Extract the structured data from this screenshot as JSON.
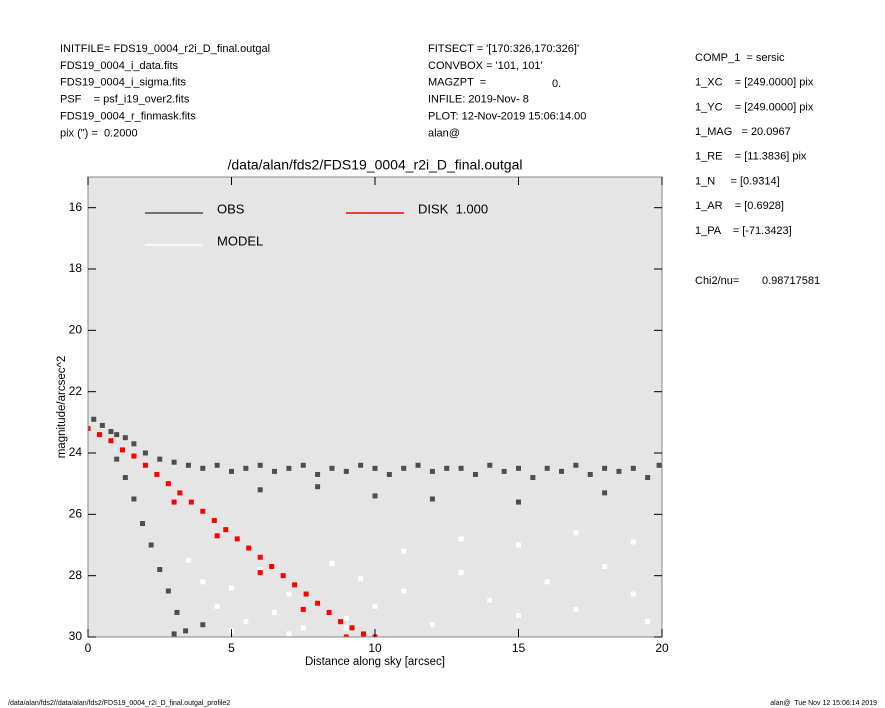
{
  "header": {
    "left": [
      "INITFILE= FDS19_0004_r2i_D_final.outgal",
      "FDS19_0004_i_data.fits",
      "FDS19_0004_i_sigma.fits",
      "PSF    = psf_i19_over2.fits",
      "FDS19_0004_r_finmask.fits",
      "pix (\") =  0.2000"
    ],
    "middle": [
      "FITSECT = '[170:326,170:326]'",
      "CONVBOX = '101, 101'",
      "MAGZPT  =",
      "INFILE: 2019-Nov- 8",
      "PLOT: 12-Nov-2019 15:06:14.00",
      "alan@"
    ],
    "magzpt_value": "0.",
    "right": [
      "COMP_1  = sersic",
      "1_XC    = [249.0000] pix",
      "1_YC    = [249.0000] pix",
      "1_MAG   = 20.0967",
      "1_RE    = [11.3836] pix",
      "1_N     = [0.9314]",
      "1_AR    = [0.6928]",
      "1_PA    = [-71.3423]"
    ],
    "chi2_label": "Chi2/nu=",
    "chi2_value": "0.98717581"
  },
  "footer": {
    "left": "/data/alan/fds2//data/alan/fds2/FDS19_0004_r2i_D_final.outgal_profile2",
    "right": "alan@  Tue Nov 12 15:06:14 2019"
  },
  "chart_data": {
    "type": "scatter",
    "title": "/data/alan/fds2/FDS19_0004_r2i_D_final.outgal",
    "x_label": "Distance along sky [arcsec]",
    "y_label": "magnitude/arcsec^2",
    "xlim": [
      0,
      20
    ],
    "ylim": [
      30,
      15
    ],
    "xticks": [
      0,
      5,
      10,
      15,
      20
    ],
    "yticks": [
      16,
      18,
      20,
      22,
      24,
      26,
      28,
      30
    ],
    "series": [
      {
        "name": "OBS",
        "color": "#4d4d4d",
        "x": [
          0.2,
          0.5,
          0.8,
          1.0,
          1.3,
          1.6,
          2.0,
          2.5,
          3,
          3.5,
          4,
          4.5,
          5,
          5.5,
          6,
          6.5,
          7,
          7.5,
          8,
          8.5,
          9,
          9.5,
          10,
          10.5,
          11,
          11.5,
          12,
          12.5,
          13,
          13.5,
          14,
          14.5,
          15,
          15.5,
          16,
          16.5,
          17,
          17.5,
          18,
          18.5,
          19,
          19.5,
          19.9,
          1.0,
          1.3,
          1.6,
          1.9,
          2.2,
          2.5,
          2.8,
          3.1,
          3.4,
          3.0,
          4.0,
          6,
          10,
          15,
          18,
          8,
          12
        ],
        "values": [
          22.9,
          23.1,
          23.3,
          23.4,
          23.5,
          23.7,
          24.0,
          24.2,
          24.3,
          24.4,
          24.5,
          24.4,
          24.6,
          24.5,
          24.4,
          24.6,
          24.5,
          24.4,
          24.7,
          24.5,
          24.6,
          24.4,
          24.5,
          24.7,
          24.5,
          24.4,
          24.6,
          24.5,
          24.5,
          24.7,
          24.4,
          24.6,
          24.5,
          24.8,
          24.5,
          24.6,
          24.4,
          24.7,
          24.5,
          24.6,
          24.5,
          24.8,
          24.4,
          24.2,
          24.8,
          25.5,
          26.3,
          27.0,
          27.8,
          28.5,
          29.2,
          29.8,
          29.9,
          29.6,
          25.2,
          25.4,
          25.6,
          25.3,
          25.1,
          25.5
        ]
      },
      {
        "name": "MODEL",
        "color": "#ffffff",
        "x": [
          3.5,
          4,
          4.5,
          5,
          5.5,
          6,
          6.5,
          7,
          7.5,
          8,
          8.5,
          9,
          9.5,
          10,
          11,
          12,
          13,
          14,
          15,
          16,
          17,
          18,
          19,
          19.5,
          5,
          7,
          9,
          11,
          13,
          15,
          17,
          19
        ],
        "values": [
          27.5,
          28.2,
          29.0,
          28.4,
          29.5,
          27.8,
          29.2,
          28.6,
          29.7,
          28.9,
          27.6,
          29.4,
          28.1,
          29.0,
          28.5,
          29.6,
          27.9,
          28.8,
          29.3,
          28.2,
          29.1,
          27.7,
          28.6,
          29.5,
          29.8,
          29.9,
          29.7,
          27.2,
          26.8,
          27.0,
          26.6,
          26.9
        ]
      },
      {
        "name": "DISK  1.000",
        "color": "#ff0000",
        "x": [
          0,
          0.4,
          0.8,
          1.2,
          1.6,
          2.0,
          2.4,
          2.8,
          3.2,
          3.6,
          4.0,
          4.4,
          4.8,
          5.2,
          5.6,
          6.0,
          6.4,
          6.8,
          7.2,
          7.6,
          8.0,
          8.4,
          8.8,
          9.2,
          9.6,
          10.0,
          3,
          4.5,
          6,
          7.5,
          9
        ],
        "values": [
          23.2,
          23.4,
          23.6,
          23.9,
          24.1,
          24.4,
          24.7,
          25.0,
          25.3,
          25.6,
          25.9,
          26.2,
          26.5,
          26.8,
          27.1,
          27.4,
          27.7,
          28.0,
          28.3,
          28.6,
          28.9,
          29.2,
          29.5,
          29.7,
          29.9,
          30.0,
          25.6,
          26.7,
          27.9,
          29.1,
          30.0
        ]
      }
    ]
  }
}
